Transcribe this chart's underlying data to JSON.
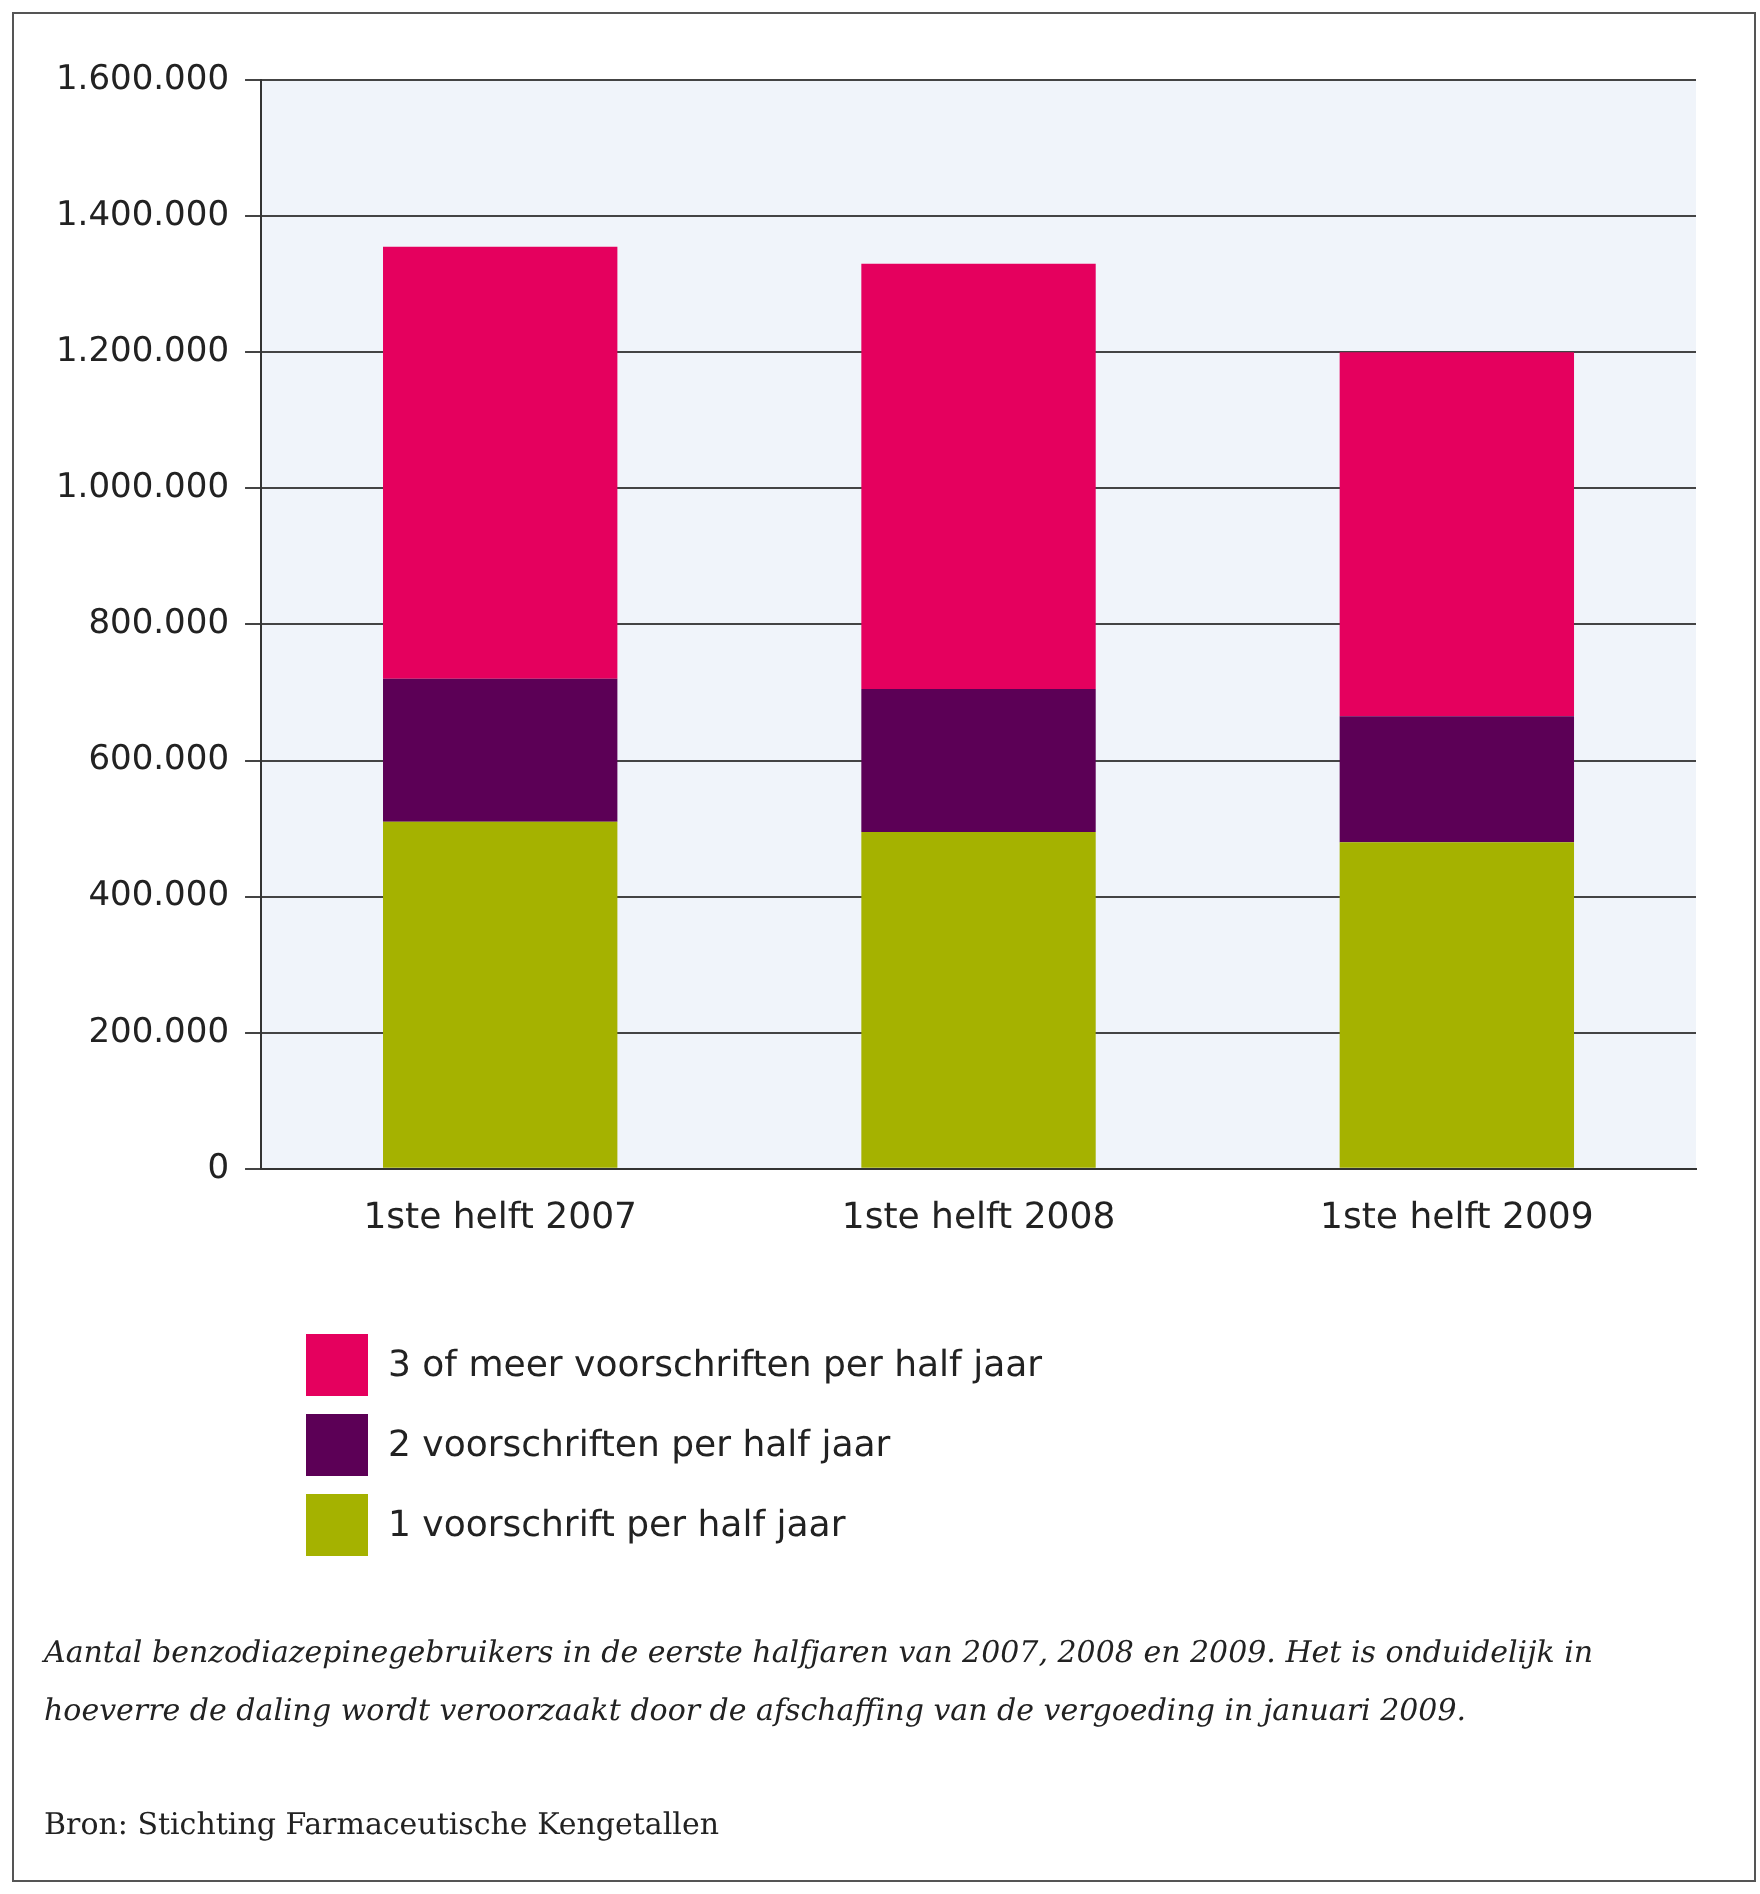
{
  "chart_data": {
    "type": "bar",
    "stacked": true,
    "categories": [
      "1ste helft 2007",
      "1ste helft 2008",
      "1ste helft 2009"
    ],
    "series": [
      {
        "name": "1 voorschrift per half jaar",
        "color": "#a5b200",
        "values": [
          510000,
          495000,
          480000
        ]
      },
      {
        "name": "2 voorschriften per half jaar",
        "color": "#5c0056",
        "values": [
          210000,
          210000,
          185000
        ]
      },
      {
        "name": "3 of meer voorschriften per half jaar",
        "color": "#e5005e",
        "values": [
          635000,
          625000,
          535000
        ]
      }
    ],
    "ylim": [
      0,
      1600000
    ],
    "yticks": [
      {
        "value": 0,
        "label": "0"
      },
      {
        "value": 200000,
        "label": "200.000"
      },
      {
        "value": 400000,
        "label": "400.000"
      },
      {
        "value": 600000,
        "label": "600.000"
      },
      {
        "value": 800000,
        "label": "800.000"
      },
      {
        "value": 1000000,
        "label": "1.000.000"
      },
      {
        "value": 1200000,
        "label": "1.200.000"
      },
      {
        "value": 1400000,
        "label": "1.400.000"
      },
      {
        "value": 1600000,
        "label": "1.600.000"
      }
    ],
    "grid": "y",
    "legend": "bottom",
    "annotations": [
      "Aantal benzodiazepinegebruikers in de eerste halfjaren van 2007, 2008 en 2009. Het is onduidelijk in hoeverre de daling wordt veroorzaakt door de afschaffing van de vergoeding in januari 2009.",
      "Bron: Stichting Farmaceutische Kengetallen"
    ]
  }
}
